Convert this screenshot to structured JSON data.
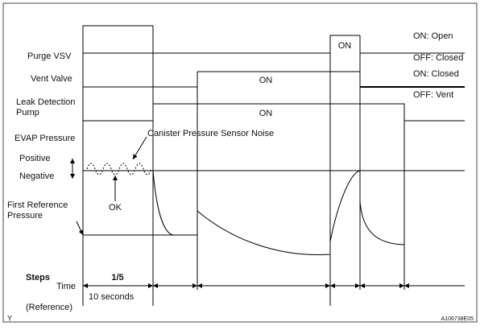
{
  "signals": {
    "purge_vsv": "Purge VSV",
    "vent_valve": "Vent Valve",
    "leak_pump": [
      "Leak Detection",
      "Pump"
    ],
    "evap": "EVAP Pressure",
    "positive": "Positive",
    "negative": "Negative",
    "first_ref": [
      "First Reference",
      "Pressure"
    ]
  },
  "states": {
    "on_open": "ON: Open",
    "off_closed": "OFF: Closed",
    "on_closed": "ON: Closed",
    "off_vent": "OFF: Vent"
  },
  "on_labels": [
    "ON",
    "ON",
    "ON"
  ],
  "annotations": {
    "noise": "Canister Pressure Sensor Noise",
    "ok": "OK"
  },
  "footer": {
    "steps": "Steps",
    "time": "Time",
    "step": "1/5",
    "duration": "10 seconds",
    "reference": "(Reference)"
  },
  "corner": {
    "left": "Y",
    "code": "A106738E05"
  }
}
